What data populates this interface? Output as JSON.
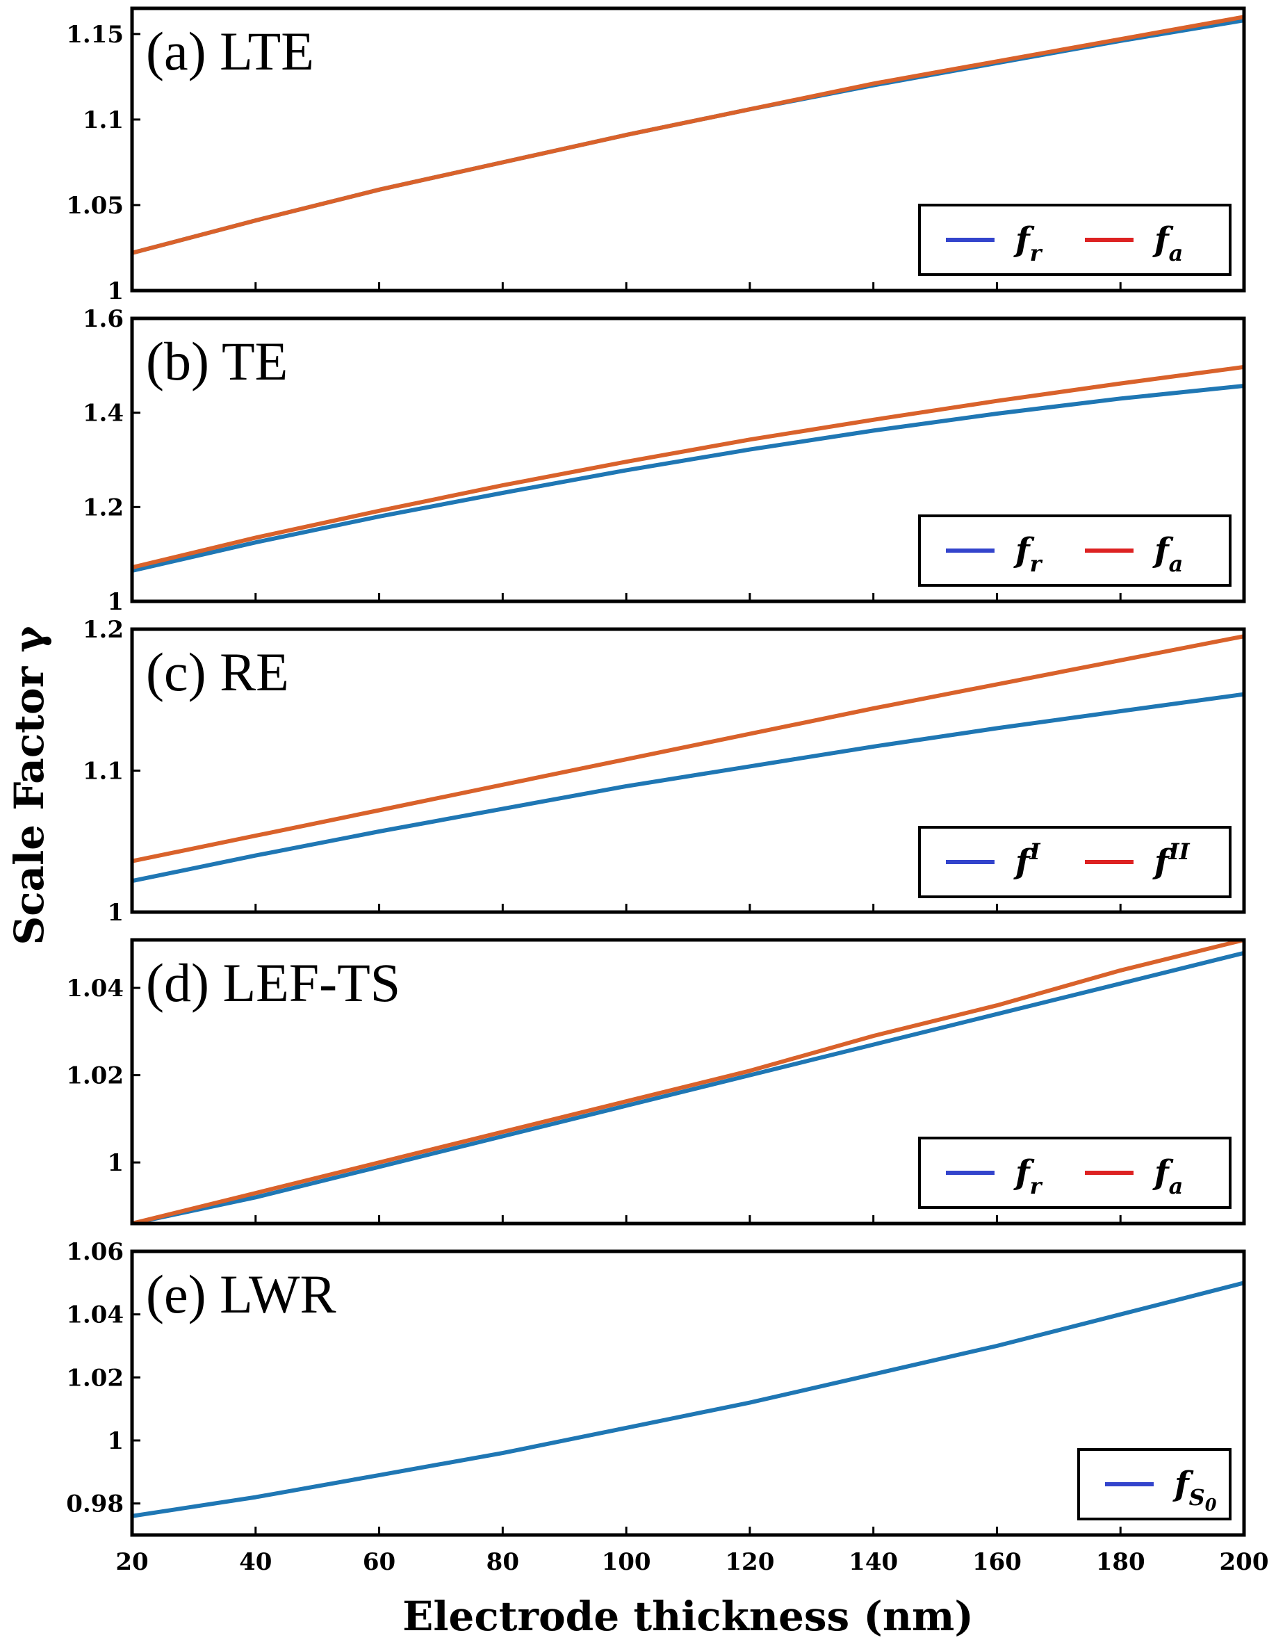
{
  "chart_data": {
    "type": "line",
    "xlabel": "Electrode thickness (nm)",
    "ylabel": "Scale Factor γ",
    "xlim": [
      20,
      200
    ],
    "xticks": [
      "20",
      "40",
      "60",
      "80",
      "100",
      "120",
      "140",
      "160",
      "180",
      "200"
    ],
    "colors": {
      "series1": "#1f77b4",
      "series2": "#d9622b",
      "legend1": "#3344cc",
      "legend2": "#dd2222"
    },
    "panels": [
      {
        "title": "(a) LTE",
        "ylim": [
          1.0,
          1.165
        ],
        "yticks": [
          "1",
          "1.05",
          "1.1",
          "1.15"
        ],
        "ytick_values": [
          1.0,
          1.05,
          1.1,
          1.15
        ],
        "legend": [
          {
            "name": "f",
            "sub": "r",
            "sup": ""
          },
          {
            "name": "f",
            "sub": "a",
            "sup": ""
          }
        ],
        "x": [
          20,
          40,
          60,
          80,
          100,
          120,
          140,
          160,
          180,
          200
        ],
        "series": [
          {
            "name": "f_r",
            "values": [
              1.022,
              1.041,
              1.059,
              1.075,
              1.091,
              1.106,
              1.12,
              1.133,
              1.146,
              1.158
            ]
          },
          {
            "name": "f_a",
            "values": [
              1.022,
              1.041,
              1.059,
              1.075,
              1.091,
              1.106,
              1.121,
              1.134,
              1.147,
              1.16
            ]
          }
        ]
      },
      {
        "title": "(b) TE",
        "ylim": [
          1.0,
          1.6
        ],
        "yticks": [
          "1",
          "1.2",
          "1.4",
          "1.6"
        ],
        "ytick_values": [
          1.0,
          1.2,
          1.4,
          1.6
        ],
        "legend": [
          {
            "name": "f",
            "sub": "r",
            "sup": ""
          },
          {
            "name": "f",
            "sub": "a",
            "sup": ""
          }
        ],
        "x": [
          20,
          40,
          60,
          80,
          100,
          120,
          140,
          160,
          180,
          200
        ],
        "series": [
          {
            "name": "f_r",
            "values": [
              1.065,
              1.125,
              1.18,
              1.23,
              1.278,
              1.322,
              1.362,
              1.398,
              1.43,
              1.457
            ]
          },
          {
            "name": "f_a",
            "values": [
              1.072,
              1.135,
              1.192,
              1.246,
              1.296,
              1.343,
              1.385,
              1.425,
              1.462,
              1.497
            ]
          }
        ]
      },
      {
        "title": "(c) RE",
        "ylim": [
          1.0,
          1.2
        ],
        "yticks": [
          "1",
          "1.1",
          "1.2"
        ],
        "ytick_values": [
          1.0,
          1.1,
          1.2
        ],
        "legend": [
          {
            "name": "f",
            "sub": "",
            "sup": "I"
          },
          {
            "name": "f",
            "sub": "",
            "sup": "II"
          }
        ],
        "x": [
          20,
          40,
          60,
          80,
          100,
          120,
          140,
          160,
          180,
          200
        ],
        "series": [
          {
            "name": "f^I",
            "values": [
              1.022,
              1.04,
              1.057,
              1.073,
              1.089,
              1.103,
              1.117,
              1.13,
              1.142,
              1.154
            ]
          },
          {
            "name": "f^II",
            "values": [
              1.036,
              1.054,
              1.072,
              1.09,
              1.108,
              1.126,
              1.144,
              1.161,
              1.178,
              1.195
            ]
          }
        ]
      },
      {
        "title": "(d) LEF-TS",
        "ylim": [
          0.986,
          1.051
        ],
        "yticks": [
          "1",
          "1.02",
          "1.04"
        ],
        "ytick_values": [
          1.0,
          1.02,
          1.04
        ],
        "legend": [
          {
            "name": "f",
            "sub": "r",
            "sup": ""
          },
          {
            "name": "f",
            "sub": "a",
            "sup": ""
          }
        ],
        "x": [
          20,
          40,
          60,
          80,
          100,
          120,
          140,
          160,
          180,
          200
        ],
        "series": [
          {
            "name": "f_r",
            "values": [
              0.986,
              0.992,
              0.999,
              1.006,
              1.013,
              1.02,
              1.027,
              1.034,
              1.041,
              1.048
            ]
          },
          {
            "name": "f_a",
            "values": [
              0.986,
              0.993,
              1.0,
              1.007,
              1.014,
              1.021,
              1.029,
              1.036,
              1.044,
              1.051
            ]
          }
        ]
      },
      {
        "title": "(e) LWR",
        "ylim": [
          0.97,
          1.06
        ],
        "yticks": [
          "0.98",
          "1",
          "1.02",
          "1.04",
          "1.06"
        ],
        "ytick_values": [
          0.98,
          1.0,
          1.02,
          1.04,
          1.06
        ],
        "legend": [
          {
            "name": "f",
            "sub": "S",
            "sup": "",
            "subsub": "0"
          }
        ],
        "x": [
          20,
          40,
          60,
          80,
          100,
          120,
          140,
          160,
          180,
          200
        ],
        "series": [
          {
            "name": "f_S0",
            "values": [
              0.976,
              0.982,
              0.989,
              0.996,
              1.004,
              1.012,
              1.021,
              1.03,
              1.04,
              1.05
            ]
          }
        ]
      }
    ]
  }
}
